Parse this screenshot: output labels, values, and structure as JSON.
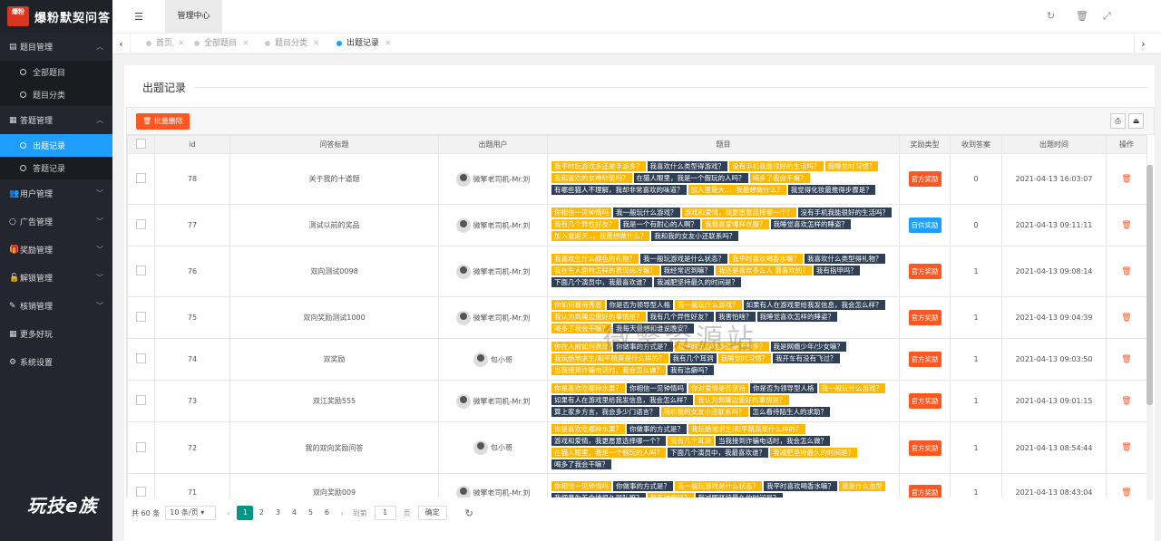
{
  "app": {
    "logo_badge": "爆粉",
    "title": "爆粉默契问答",
    "brand_bottom": "玩技e族"
  },
  "sidebar": {
    "groups": [
      {
        "icon": "book-icon",
        "label": "题目管理",
        "expanded": true,
        "items": [
          {
            "label": "全部题目"
          },
          {
            "label": "题目分类"
          }
        ]
      },
      {
        "icon": "calendar-icon",
        "label": "答题管理",
        "expanded": true,
        "items": [
          {
            "label": "出题记录",
            "active": true
          },
          {
            "label": "答题记录"
          }
        ]
      },
      {
        "icon": "users-icon",
        "label": "用户管理",
        "expanded": false
      },
      {
        "icon": "circle-icon",
        "label": "广告管理",
        "expanded": false
      },
      {
        "icon": "gift-icon",
        "label": "奖励管理",
        "expanded": false
      },
      {
        "icon": "unlock-icon",
        "label": "解锁管理",
        "expanded": false
      },
      {
        "icon": "pen-icon",
        "label": "核销管理",
        "expanded": false
      },
      {
        "icon": "grid-icon",
        "label": "更多好玩",
        "expanded": false
      },
      {
        "icon": "gear-icon",
        "label": "系统设置",
        "expanded": false
      }
    ]
  },
  "header": {
    "tab": "管理中心"
  },
  "page_tabs": [
    {
      "label": "首页"
    },
    {
      "label": "全部题目"
    },
    {
      "label": "题目分类"
    },
    {
      "label": "出题记录",
      "active": true
    }
  ],
  "content": {
    "legend": "出题记录",
    "batch_delete": "批量删除",
    "columns": [
      "id",
      "问答标题",
      "出题用户",
      "题目",
      "奖励类型",
      "收到答案",
      "出题时间",
      "操作"
    ],
    "rows": [
      {
        "id": "78",
        "title": "关于我的十道题",
        "user": "微擎老司机-Mr.刘",
        "questions": [
          [
            "y",
            "我平时玩游戏多还是手游多？"
          ],
          [
            "d",
            "我喜欢什么类型得游戏？"
          ],
          [
            "y",
            "没有手机我能很好的生活吗？"
          ],
          [
            "y",
            "我睡觉时习惯？"
          ],
          [
            "y",
            "我和喜欢的女神吵架吗？"
          ],
          [
            "d",
            "在猫人眼里，我是一个假玩的人吗？"
          ],
          [
            "y",
            "喝多了我会干嘛？"
          ],
          [
            "d",
            "有哪些猫人不理解，我却非常喜欢的味道？"
          ],
          [
            "y",
            "加入里最大..，我最想做什么？"
          ],
          [
            "d",
            "我觉得化妆最推得步骤是？"
          ]
        ],
        "reward": "官方奖励",
        "reward_color": "#ff5722",
        "answers": "0",
        "time": "2021-04-13 16:03:07"
      },
      {
        "id": "77",
        "title": "测试以前的奖品",
        "user": "微擎老司机-Mr.刘",
        "questions": [
          [
            "y",
            "你相信一见钟情吗"
          ],
          [
            "d",
            "我一般玩什么游戏？"
          ],
          [
            "y",
            "游戏和爱情，我更愿意选择哪一个？"
          ],
          [
            "d",
            "没有手机我能很好的生活吗？"
          ],
          [
            "y",
            "我有几个异性好友？"
          ],
          [
            "d",
            "我是一个有耐心的人啊？"
          ],
          [
            "y",
            "我最喜爱哪样衣服？"
          ],
          [
            "d",
            "我睡觉喜欢怎样的睡姿？"
          ],
          [
            "y",
            "加入重返天..，我最想做什么？"
          ],
          [
            "d",
            "我和我的女友小还联系吗？"
          ]
        ],
        "reward": "自供奖励",
        "reward_color": "#1e9fff",
        "answers": "0",
        "time": "2021-04-13 09:11:11"
      },
      {
        "id": "76",
        "title": "双向测试0098",
        "user": "微擎老司机-Mr.刘",
        "questions": [
          [
            "y",
            "我喜欢生什么颜色的礼物？"
          ],
          [
            "d",
            "我一般玩游戏是什么状态？"
          ],
          [
            "y",
            "我平时喜欢喝香水嘛？"
          ],
          [
            "d",
            "我喜欢什么类型得礼物？"
          ],
          [
            "y",
            "我在生人面前怎样的表现尚冷嘛？"
          ],
          [
            "d",
            "我经常迟到嘛？"
          ],
          [
            "y",
            "我还是喜欢多么人 最喜欢的？"
          ],
          [
            "d",
            "我有指甲吗？"
          ],
          [
            "d",
            "下面几个演员中，我最喜欢谁？"
          ],
          [
            "d",
            "我减肥坚持最久的时间是？"
          ]
        ],
        "reward": "官方奖励",
        "reward_color": "#ff5722",
        "answers": "1",
        "time": "2021-04-13 09:08:14"
      },
      {
        "id": "75",
        "title": "双向奖励测试1000",
        "user": "微擎老司机-Mr.刘",
        "questions": [
          [
            "y",
            "你如何看待秀恩"
          ],
          [
            "d",
            "你是否为领导型人格"
          ],
          [
            "y",
            "我一般玩什么游戏？"
          ],
          [
            "d",
            "如果有人在游戏里给我发信息，我会怎么样？"
          ],
          [
            "y",
            "我认为到庸边最好的事情是？"
          ],
          [
            "d",
            "我有几个异性好友？"
          ],
          [
            "d",
            "我害怕啥？"
          ],
          [
            "d",
            "我睡觉喜欢怎样的睡姿？"
          ],
          [
            "y",
            "喝多了我会干嘛？"
          ],
          [
            "d",
            "我每天最想和谁说晚安？"
          ]
        ],
        "reward": "官方奖励",
        "reward_color": "#ff5722",
        "answers": "1",
        "time": "2021-04-13 09:04:39"
      },
      {
        "id": "74",
        "title": "双奖励",
        "user": "包小哥",
        "questions": [
          [
            "y",
            "你在人前如何表现"
          ],
          [
            "d",
            "你做事的方式是？"
          ],
          [
            "y",
            "我平时玩游戏多还是手游多？"
          ],
          [
            "d",
            "我是网瘾少年/少女嘛？"
          ],
          [
            "y",
            "我玩绝地求生/和平精英是什么样的？"
          ],
          [
            "d",
            "我有几个耳洞"
          ],
          [
            "y",
            "我睡觉时习惯？"
          ],
          [
            "d",
            "我开车有没有飞过？"
          ],
          [
            "y",
            "当我接到诈骗电话时，我会怎么做？"
          ],
          [
            "d",
            "我有洁癖吗？"
          ]
        ],
        "reward": "官方奖励",
        "reward_color": "#ff5722",
        "answers": "1",
        "time": "2021-04-13 09:03:50"
      },
      {
        "id": "73",
        "title": "双江奖励555",
        "user": "微擎老司机-Mr.刘",
        "questions": [
          [
            "y",
            "你是喜欢吃哪种水果？"
          ],
          [
            "d",
            "你相信一见钟情吗"
          ],
          [
            "y",
            "你对爱情是否坚持"
          ],
          [
            "d",
            "你是否为领导型人格"
          ],
          [
            "y",
            "我一般玩什么游戏？"
          ],
          [
            "d",
            "如果有人在游戏里给我发信息，我会怎么样？"
          ],
          [
            "y",
            "我认为到庸边最好的事情是？"
          ],
          [
            "d",
            "算上家乡方言，我会多少门语言？"
          ],
          [
            "y",
            "我和我的女友小还联系吗？"
          ],
          [
            "d",
            "怎么看待陌生人的求助？"
          ]
        ],
        "reward": "官方奖励",
        "reward_color": "#ff5722",
        "answers": "1",
        "time": "2021-04-13 09:01:15"
      },
      {
        "id": "72",
        "title": "我的双向奖励问答",
        "user": "包小哥",
        "questions": [
          [
            "y",
            "你是喜欢吃哪种水果？"
          ],
          [
            "d",
            "你做事的方式是？"
          ],
          [
            "y",
            "我玩绝地求生/和平精英是什么样的？"
          ],
          [
            "d",
            "游戏和爱情，我更愿意选择哪一个？"
          ],
          [
            "y",
            "我有几个耳洞"
          ],
          [
            "d",
            "当我接到诈骗电话时，我会怎么做？"
          ],
          [
            "y",
            "在猫人眼里，我是一个假玩的人吗？"
          ],
          [
            "d",
            "下面几个演员中，我最喜欢谁？"
          ],
          [
            "y",
            "我减肥坚持最久的时间是？"
          ],
          [
            "d",
            "喝多了我会干嘛？"
          ]
        ],
        "reward": "官方奖励",
        "reward_color": "#ff5722",
        "answers": "1",
        "time": "2021-04-13 08:54:44"
      },
      {
        "id": "71",
        "title": "双向奖励009",
        "user": "微擎老司机-Mr.刘",
        "questions": [
          [
            "y",
            "你相信一见钟情吗"
          ],
          [
            "d",
            "你做事的方式是？"
          ],
          [
            "y",
            "我一般玩游戏是什么状态？"
          ],
          [
            "d",
            "我平时喜欢喝香水嘛？"
          ],
          [
            "y",
            "我是什么血型"
          ],
          [
            "d",
            "我把意为美食排很久得队嘛？"
          ],
          [
            "y",
            "我有洁癖吗？"
          ],
          [
            "d",
            "我减肥坚持最久的时间是？"
          ]
        ],
        "reward": "官方奖励",
        "reward_color": "#ff5722",
        "answers": "1",
        "time": "2021-04-13 08:43:04"
      }
    ],
    "watermark": "微擎资源站"
  },
  "pager": {
    "total": "共 60 条",
    "per_page": "10 条/页",
    "pages": [
      "1",
      "2",
      "3",
      "4",
      "5",
      "6"
    ],
    "current": "1",
    "goto_prefix": "到第",
    "goto_value": "1",
    "goto_suffix": "页",
    "ok": "确定"
  }
}
